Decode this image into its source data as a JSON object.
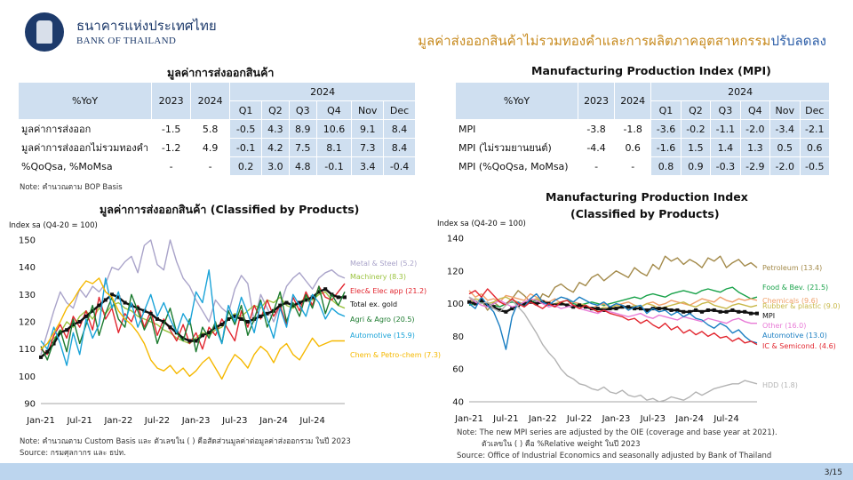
{
  "header": {
    "bank_name_th": "ธนาคารแห่งประเทศไทย",
    "bank_name_en": "BANK OF THAILAND",
    "title_main": "มูลค่าส่งออกสินค้าไม่รวมทองคำและการผลิตภาคอุตสาหกรรม",
    "title_accent": "ปรับลดลง",
    "colors": {
      "title_main": "#c78a1e",
      "title_accent": "#2e5fa8",
      "brand": "#1d3a6b"
    },
    "logo_icon": "bank-of-thailand-emblem-icon"
  },
  "left_table": {
    "title": "มูลค่าการส่งออกสินค้า",
    "yoy_header": "%YoY",
    "year_cols": [
      "2023",
      "2024"
    ],
    "group_header": "2024",
    "sub_cols": [
      "Q1",
      "Q2",
      "Q3",
      "Q4",
      "Nov",
      "Dec"
    ],
    "rows": [
      {
        "label": "มูลค่าการส่งออก",
        "values": [
          "-1.5",
          "5.8",
          "-0.5",
          "4.3",
          "8.9",
          "10.6",
          "9.1",
          "8.4"
        ]
      },
      {
        "label": "มูลค่าการส่งออกไม่รวมทองคำ",
        "values": [
          "-1.2",
          "4.9",
          "-0.1",
          "4.2",
          "7.5",
          "8.1",
          "7.3",
          "8.4"
        ]
      },
      {
        "label": "%QoQsa, %MoMsa",
        "values": [
          "-",
          "-",
          "0.2",
          "3.0",
          "4.8",
          "-0.1",
          "3.4",
          "-0.4"
        ]
      }
    ],
    "note": "Note: คำนวณตาม BOP Basis"
  },
  "right_table": {
    "title": "Manufacturing Production Index (MPI)",
    "yoy_header": "%YoY",
    "year_cols": [
      "2023",
      "2024"
    ],
    "group_header": "2024",
    "sub_cols": [
      "Q1",
      "Q2",
      "Q3",
      "Q4",
      "Nov",
      "Dec"
    ],
    "rows": [
      {
        "label": "MPI",
        "values": [
          "-3.8",
          "-1.8",
          "-3.6",
          "-0.2",
          "-1.1",
          "-2.0",
          "-3.4",
          "-2.1"
        ]
      },
      {
        "label": "MPI (ไม่รวมยานยนต์)",
        "values": [
          "-4.4",
          "0.6",
          "-1.6",
          "1.5",
          "1.4",
          "1.3",
          "0.5",
          "0.6"
        ]
      },
      {
        "label": "MPI (%QoQsa, MoMsa)",
        "values": [
          "-",
          "-",
          "0.8",
          "0.9",
          "-0.3",
          "-2.9",
          "-2.0",
          "-0.5"
        ]
      }
    ]
  },
  "chart_data": [
    {
      "type": "line",
      "title": "มูลค่าการส่งออกสินค้า (Classified by Products)",
      "ylabel": "Index sa (Q4-20 = 100)",
      "ylim": [
        90,
        150
      ],
      "yticks": [
        90,
        100,
        110,
        120,
        130,
        140,
        150
      ],
      "x_range": [
        "Jan-21",
        "Dec-24"
      ],
      "xtick_labels": [
        "Jan-21",
        "Jul-21",
        "Jan-22",
        "Jul-22",
        "Jan-23",
        "Jul-23",
        "Jan-24",
        "Jul-24"
      ],
      "grid": false,
      "legend": "right",
      "series": [
        {
          "name": "Metal & Steel (5.2)",
          "color": "#a9a3c9",
          "values": [
            108,
            116,
            124,
            131,
            127,
            125,
            132,
            129,
            133,
            131,
            134,
            140,
            139,
            142,
            144,
            138,
            148,
            152,
            141,
            139,
            150,
            142,
            136,
            133,
            128,
            124,
            120,
            128,
            125,
            123,
            132,
            137,
            134,
            120,
            130,
            125,
            120,
            126,
            133,
            136,
            138,
            135,
            132,
            136,
            138,
            139,
            137,
            136
          ]
        },
        {
          "name": "Machinery (8.3)",
          "color": "#9bc33f",
          "values": [
            110,
            112,
            114,
            116,
            120,
            118,
            122,
            124,
            121,
            125,
            123,
            126,
            127,
            125,
            124,
            122,
            121,
            120,
            119,
            117,
            116,
            114,
            113,
            112,
            114,
            116,
            115,
            117,
            118,
            121,
            123,
            122,
            124,
            126,
            125,
            128,
            127,
            129,
            126,
            125,
            127,
            129,
            128,
            130,
            131,
            128,
            126,
            125
          ]
        },
        {
          "name": "Elec& Elec app (21.2)",
          "color": "#e2262f",
          "values": [
            110,
            108,
            115,
            119,
            114,
            122,
            118,
            124,
            117,
            129,
            121,
            125,
            116,
            123,
            120,
            126,
            118,
            124,
            115,
            121,
            117,
            113,
            119,
            112,
            116,
            110,
            118,
            115,
            121,
            117,
            113,
            124,
            118,
            126,
            121,
            128,
            122,
            126,
            119,
            129,
            124,
            131,
            126,
            133,
            129,
            128,
            131,
            134
          ]
        },
        {
          "name": "Total ex. gold",
          "color": "#111111",
          "values": [
            107,
            109,
            112,
            116,
            117,
            119,
            120,
            122,
            124,
            126,
            128,
            130,
            129,
            127,
            126,
            125,
            124,
            123,
            121,
            120,
            118,
            116,
            114,
            113,
            113,
            115,
            116,
            118,
            119,
            121,
            122,
            121,
            120,
            121,
            122,
            123,
            124,
            126,
            127,
            126,
            127,
            128,
            129,
            131,
            132,
            130,
            129,
            129
          ]
        },
        {
          "name": "Agri & Agro (20.5)",
          "color": "#1b7a2e",
          "values": [
            111,
            106,
            113,
            117,
            109,
            121,
            112,
            119,
            126,
            115,
            123,
            129,
            121,
            118,
            130,
            124,
            117,
            122,
            112,
            119,
            125,
            116,
            113,
            121,
            109,
            118,
            114,
            120,
            112,
            124,
            119,
            126,
            115,
            121,
            128,
            118,
            124,
            131,
            120,
            127,
            122,
            130,
            125,
            133,
            123,
            130,
            126,
            131
          ]
        },
        {
          "name": "Automotive (15.9)",
          "color": "#1aa3d8",
          "values": [
            113,
            110,
            118,
            112,
            104,
            116,
            108,
            121,
            114,
            119,
            136,
            125,
            131,
            120,
            127,
            118,
            124,
            130,
            122,
            127,
            121,
            116,
            123,
            119,
            131,
            127,
            139,
            118,
            112,
            126,
            120,
            129,
            123,
            116,
            127,
            121,
            114,
            125,
            118,
            130,
            126,
            122,
            130,
            127,
            121,
            125,
            123,
            122
          ]
        },
        {
          "name": "Chem & Petro-chem (7.3)",
          "color": "#f5b800",
          "values": [
            110,
            112,
            116,
            120,
            125,
            128,
            132,
            135,
            134,
            136,
            131,
            129,
            124,
            121,
            119,
            116,
            112,
            106,
            103,
            102,
            104,
            101,
            103,
            100,
            102,
            105,
            107,
            103,
            99,
            104,
            108,
            106,
            103,
            108,
            111,
            109,
            105,
            110,
            112,
            108,
            106,
            110,
            114,
            111,
            112,
            113,
            113,
            113
          ]
        }
      ],
      "notes": [
        "Note: คำนวณตาม Custom Basis และ ตัวเลขใน ( ) คือสัดส่วนมูลค่าต่อมูลค่าส่งออกรวม ในปี 2023",
        "Source: กรมศุลกากร และ ธปท."
      ]
    },
    {
      "type": "line",
      "title_line1": "Manufacturing Production Index",
      "title_line2": "(Classified by Products)",
      "ylabel": "Index sa (Q4-20 = 100)",
      "ylim": [
        40,
        140
      ],
      "yticks": [
        40,
        60,
        80,
        100,
        120,
        140
      ],
      "x_range": [
        "Jan-21",
        "Dec-24"
      ],
      "xtick_labels": [
        "Jan-21",
        "Jul-21",
        "Jan-22",
        "Jul-22",
        "Jan-23",
        "Jul-23",
        "Jan-24",
        "Jul-24"
      ],
      "grid": false,
      "legend": "right",
      "series": [
        {
          "name": "Petroleum (13.4)",
          "color": "#a38a4a",
          "values": [
            104,
            100,
            102,
            96,
            101,
            98,
            100,
            103,
            108,
            105,
            101,
            99,
            106,
            104,
            110,
            112,
            109,
            107,
            113,
            111,
            116,
            118,
            114,
            117,
            120,
            118,
            116,
            122,
            119,
            117,
            124,
            121,
            129,
            126,
            128,
            124,
            127,
            125,
            122,
            128,
            126,
            129,
            122,
            125,
            127,
            123,
            125,
            122
          ]
        },
        {
          "name": "Food & Bev. (21.5)",
          "color": "#19a24a",
          "values": [
            99,
            100,
            101,
            100,
            99,
            98,
            100,
            101,
            100,
            99,
            101,
            102,
            101,
            100,
            99,
            101,
            102,
            100,
            99,
            100,
            101,
            100,
            99,
            100,
            101,
            102,
            103,
            104,
            103,
            105,
            106,
            105,
            104,
            106,
            107,
            108,
            107,
            106,
            108,
            109,
            108,
            107,
            109,
            110,
            107,
            105,
            103,
            104
          ]
        },
        {
          "name": "Chemicals (9.6)",
          "color": "#f0a06a",
          "values": [
            108,
            104,
            106,
            102,
            103,
            101,
            105,
            104,
            103,
            102,
            106,
            104,
            102,
            101,
            103,
            100,
            99,
            101,
            100,
            98,
            97,
            99,
            100,
            98,
            99,
            100,
            101,
            99,
            98,
            100,
            101,
            99,
            100,
            102,
            101,
            100,
            99,
            101,
            103,
            102,
            101,
            104,
            102,
            101,
            103,
            102,
            103,
            102
          ]
        },
        {
          "name": "Rubber & plastic (9.0)",
          "color": "#c8b84a",
          "values": [
            101,
            103,
            102,
            100,
            101,
            103,
            104,
            102,
            101,
            100,
            102,
            103,
            101,
            99,
            100,
            101,
            99,
            98,
            100,
            99,
            97,
            96,
            98,
            97,
            99,
            98,
            97,
            99,
            98,
            100,
            99,
            97,
            98,
            99,
            100,
            101,
            99,
            98,
            100,
            101,
            99,
            98,
            97,
            99,
            100,
            99,
            98,
            99
          ]
        },
        {
          "name": "MPI",
          "color": "#111111",
          "values": [
            101,
            100,
            102,
            99,
            98,
            96,
            95,
            97,
            99,
            100,
            101,
            100,
            101,
            100,
            99,
            100,
            99,
            98,
            99,
            98,
            97,
            97,
            96,
            97,
            97,
            98,
            98,
            97,
            97,
            96,
            97,
            97,
            97,
            96,
            96,
            95,
            95,
            96,
            95,
            96,
            96,
            95,
            95,
            96,
            95,
            95,
            94,
            94
          ]
        },
        {
          "name": "Other (16.0)",
          "color": "#e87ad6",
          "values": [
            104,
            101,
            99,
            98,
            100,
            102,
            100,
            98,
            99,
            101,
            103,
            102,
            100,
            98,
            99,
            97,
            98,
            99,
            97,
            96,
            95,
            94,
            96,
            95,
            94,
            93,
            92,
            93,
            94,
            92,
            91,
            93,
            92,
            91,
            90,
            92,
            91,
            90,
            89,
            91,
            90,
            89,
            88,
            90,
            91,
            89,
            88,
            88
          ]
        },
        {
          "name": "Automotive (13.0)",
          "color": "#1a7ec2",
          "values": [
            100,
            97,
            104,
            99,
            95,
            86,
            72,
            92,
            101,
            98,
            103,
            106,
            101,
            99,
            102,
            104,
            103,
            101,
            104,
            102,
            100,
            99,
            101,
            98,
            100,
            99,
            96,
            98,
            99,
            94,
            97,
            95,
            96,
            93,
            95,
            92,
            94,
            91,
            90,
            87,
            85,
            88,
            86,
            82,
            84,
            80,
            77,
            76
          ]
        },
        {
          "name": "IC & Semicond. (4.6)",
          "color": "#e2262f",
          "values": [
            106,
            108,
            104,
            109,
            105,
            101,
            99,
            103,
            100,
            98,
            101,
            99,
            97,
            100,
            98,
            101,
            102,
            99,
            97,
            99,
            97,
            95,
            96,
            94,
            93,
            92,
            90,
            91,
            88,
            90,
            87,
            85,
            88,
            84,
            86,
            82,
            84,
            81,
            83,
            80,
            82,
            79,
            80,
            77,
            79,
            76,
            77,
            75
          ]
        },
        {
          "name": "HDD (1.8)",
          "color": "#b3b3b3",
          "values": [
            104,
            102,
            100,
            101,
            97,
            95,
            99,
            102,
            98,
            94,
            88,
            82,
            75,
            70,
            66,
            60,
            56,
            54,
            51,
            50,
            48,
            47,
            49,
            46,
            45,
            47,
            44,
            43,
            44,
            41,
            42,
            40,
            41,
            43,
            42,
            41,
            43,
            46,
            44,
            46,
            48,
            49,
            50,
            51,
            51,
            53,
            52,
            51
          ]
        }
      ],
      "notes": [
        "Note: The new MPI series are adjusted by the OIE (coverage and base year at 2021).",
        "ตัวเลขใน ( ) คือ %Relative weight ในปี 2023",
        "Source: Office of Industrial Economics and seasonally adjusted by Bank of Thailand"
      ]
    }
  ],
  "footer": {
    "page": "3/15",
    "bar_color": "#bcd5ee"
  }
}
